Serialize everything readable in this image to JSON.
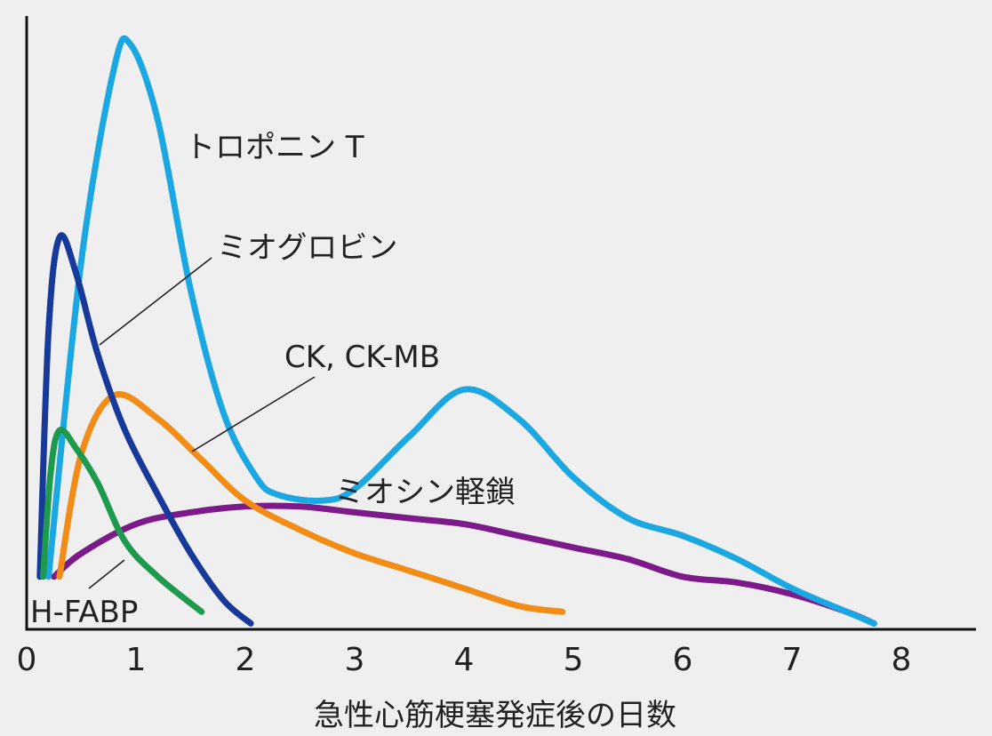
{
  "chart_data": {
    "type": "line",
    "xlabel": "急性心筋梗塞発症後の日数",
    "ylabel": "",
    "xlim": [
      0,
      8.7
    ],
    "ylim": [
      0,
      100
    ],
    "x_ticks": [
      "0",
      "1",
      "2",
      "3",
      "4",
      "5",
      "6",
      "7",
      "8"
    ],
    "grid": false,
    "series": [
      {
        "name": "トロポニン T",
        "color": "#1aa7e2",
        "x": [
          0.2,
          0.5,
          0.8,
          0.95,
          1.2,
          1.5,
          1.8,
          2.1,
          2.3,
          2.7,
          3.0,
          3.5,
          4.0,
          4.5,
          5.0,
          5.5,
          6.0,
          6.5,
          7.0,
          7.5,
          7.75
        ],
        "y": [
          9,
          63,
          96,
          100,
          87,
          58,
          37,
          26,
          23,
          22,
          24,
          33,
          41,
          36,
          26,
          19,
          16,
          12,
          7,
          3,
          1
        ]
      },
      {
        "name": "ミオグロビン",
        "color": "#17399a",
        "x": [
          0.12,
          0.2,
          0.3,
          0.45,
          0.65,
          0.9,
          1.2,
          1.5,
          1.8,
          2.05
        ],
        "y": [
          9,
          51,
          67,
          61,
          47,
          34,
          23,
          13,
          5,
          1
        ]
      },
      {
        "name": "CK, CK-MB",
        "color": "#f28c16",
        "x": [
          0.3,
          0.5,
          0.8,
          1.2,
          1.6,
          2.0,
          2.5,
          3.0,
          3.5,
          4.0,
          4.5,
          4.9
        ],
        "y": [
          9,
          30,
          40,
          36,
          29,
          22,
          17,
          13,
          10,
          7,
          4,
          3
        ]
      },
      {
        "name": "H-FABP",
        "color": "#1e9a4e",
        "x": [
          0.15,
          0.22,
          0.3,
          0.45,
          0.65,
          0.9,
          1.2,
          1.6
        ],
        "y": [
          9,
          27,
          34,
          31,
          25,
          15,
          9,
          3
        ]
      },
      {
        "name": "ミオシン軽鎖",
        "color": "#7d1a8a",
        "x": [
          0.25,
          0.5,
          1.0,
          1.5,
          2.0,
          2.5,
          3.0,
          3.5,
          4.0,
          4.5,
          5.0,
          5.5,
          6.0,
          6.5,
          7.0,
          7.5,
          7.75
        ],
        "y": [
          9,
          13,
          18,
          20,
          21,
          21,
          20,
          19,
          18,
          16,
          14,
          12,
          9,
          8,
          6,
          3,
          1
        ]
      }
    ],
    "annotations": [
      {
        "text": "トロポニン T",
        "series": "トロポニン T"
      },
      {
        "text": "ミオグロビン",
        "series": "ミオグロビン"
      },
      {
        "text": "CK, CK-MB",
        "series": "CK, CK-MB"
      },
      {
        "text": "ミオシン軽鎖",
        "series": "ミオシン軽鎖"
      },
      {
        "text": "H-FABP",
        "series": "H-FABP"
      }
    ]
  }
}
